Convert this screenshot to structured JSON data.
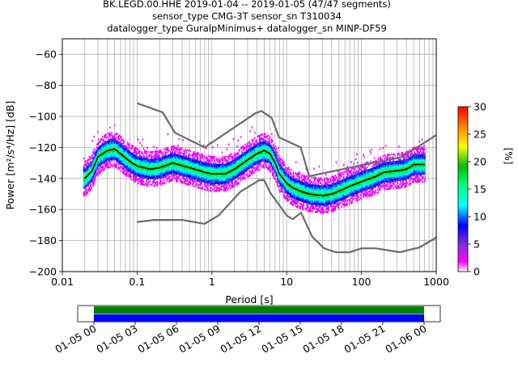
{
  "title": {
    "line1": "BK.LEGD.00.HHE   2019-01-04 -- 2019-01-05  (47/47 segments)",
    "line2": "sensor_type CMG-3T sensor_sn T310034",
    "line3": "datalogger_type GuralpMinimus+ datalogger_sn MINP-DF59"
  },
  "chart_data": [
    {
      "type": "heatmap",
      "title": "BK.LEGD.00.HHE   2019-01-04 -- 2019-01-05  (47/47 segments)",
      "xlabel": "Period [s]",
      "ylabel": "Power [m²/s⁴/Hz] [dB]",
      "xscale": "log",
      "xlim": [
        0.01,
        1000
      ],
      "ylim": [
        -200,
        -50
      ],
      "xticks": [
        {
          "v": 0.01,
          "label": "0.01"
        },
        {
          "v": 0.1,
          "label": "0.1"
        },
        {
          "v": 1,
          "label": "1"
        },
        {
          "v": 10,
          "label": "10"
        },
        {
          "v": 100,
          "label": "100"
        },
        {
          "v": 1000,
          "label": "1000"
        }
      ],
      "yticks": [
        -60,
        -80,
        -100,
        -120,
        -140,
        -160,
        -180,
        -200
      ],
      "grid": true,
      "colorbar": {
        "label": "[%]",
        "range": [
          0,
          30
        ],
        "ticks": [
          0,
          5,
          10,
          15,
          20,
          25,
          30
        ],
        "colors": [
          "#ffffff",
          "#ff00ff",
          "#8a2be2",
          "#0000ff",
          "#00ffff",
          "#00ff80",
          "#00c000",
          "#ffff00",
          "#ff8000",
          "#ff0000"
        ]
      },
      "mode_curve": {
        "name": "mode",
        "color": "#000000",
        "x": [
          0.02,
          0.025,
          0.03,
          0.04,
          0.05,
          0.06,
          0.08,
          0.1,
          0.15,
          0.2,
          0.3,
          0.5,
          0.8,
          1,
          1.5,
          2,
          3,
          4,
          5,
          6,
          7,
          8,
          10,
          12,
          15,
          20,
          30,
          40,
          50,
          70,
          100,
          150,
          200,
          300,
          400,
          500,
          700
        ],
        "y": [
          -140,
          -135,
          -126,
          -122,
          -121,
          -124,
          -129,
          -132,
          -134,
          -133,
          -130,
          -133,
          -136,
          -137,
          -137,
          -134,
          -128,
          -124,
          -122,
          -124,
          -130,
          -137,
          -143,
          -146,
          -148,
          -150,
          -151,
          -150,
          -148,
          -145,
          -142,
          -139,
          -136,
          -135,
          -134,
          -131,
          -131
        ]
      },
      "noise_model_high": {
        "name": "NHNM",
        "color": "#6b6b6b",
        "x": [
          0.1,
          0.22,
          0.32,
          0.8,
          3.8,
          4.6,
          6.3,
          7.9,
          15.4,
          20,
          354.8,
          1000
        ],
        "y": [
          -91.5,
          -97.4,
          -110.5,
          -120,
          -98,
          -96.5,
          -101,
          -113.5,
          -120,
          -138.5,
          -126,
          -112
        ]
      },
      "noise_model_low": {
        "name": "NLNM",
        "color": "#6b6b6b",
        "x": [
          0.1,
          0.17,
          0.4,
          0.8,
          1.24,
          2.4,
          4.3,
          5,
          6,
          10,
          12,
          15.6,
          21.9,
          31.6,
          45,
          70,
          101,
          154,
          328,
          600,
          1000
        ],
        "y": [
          -168,
          -166.7,
          -166.7,
          -169.2,
          -163.7,
          -148.6,
          -141.1,
          -141.1,
          -149,
          -163.8,
          -166.2,
          -162.1,
          -177.5,
          -185,
          -187.5,
          -187.5,
          -185,
          -185,
          -187.5,
          -184.4,
          -178
        ]
      }
    },
    {
      "type": "bar",
      "title": "",
      "xlabel": "",
      "x_ticks": [
        "01-05 00",
        "01-05 03",
        "01-05 06",
        "01-05 09",
        "01-05 12",
        "01-05 15",
        "01-05 18",
        "01-05 21",
        "01-06 00"
      ],
      "series": [
        {
          "color": "#008000",
          "coverage": [
            0.0,
            1.0
          ]
        },
        {
          "color": "#0000ff",
          "coverage": [
            0.0,
            1.0
          ]
        }
      ]
    }
  ]
}
